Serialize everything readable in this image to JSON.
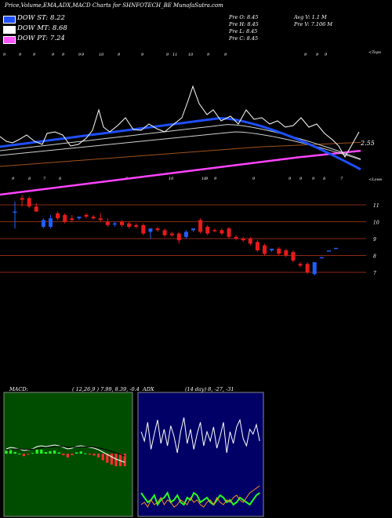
{
  "header": {
    "title": "Price,Volume,EMA,ADX,MACD Charts for SHNFOTECH_BE MunafaSutra.com"
  },
  "legend": [
    {
      "label": "DOW ST: 8.22",
      "color": "#1f4fff"
    },
    {
      "label": "DOW MT: 8.68",
      "color": "#ffffff"
    },
    {
      "label": "DOW PT: 7.24",
      "color": "#ff55ff"
    }
  ],
  "ohlc": {
    "col1": [
      "Pre  O: 8.45",
      "Pre  H: 8.45",
      "Pre  L: 8.45",
      "Pre  C: 8.45"
    ],
    "col2": [
      "Avg V: 1.1  M",
      "Pre  V: 7.106  M"
    ]
  },
  "chart_data": [
    {
      "type": "candlestick",
      "name": "price",
      "annotations": {
        "top_right": "<Tops",
        "bottom_right": "<Lows",
        "last_label": "2.55"
      },
      "levels": [
        11,
        10,
        9,
        8,
        7
      ],
      "level_labels": [
        "11",
        "10",
        "9",
        "8",
        "7"
      ],
      "top_ticks": [
        "9",
        "9",
        "9",
        "9",
        "9",
        "9",
        "9",
        "10",
        "9",
        "9",
        "9",
        "11",
        "10",
        "9",
        "9",
        "9",
        "9",
        "9"
      ],
      "bottom_ticks": [
        "9",
        "8",
        "7",
        "8",
        "9",
        "10",
        "10",
        "9",
        "9",
        "9",
        "9",
        "9",
        "9",
        "8",
        "7"
      ],
      "candles": [
        {
          "o": 10.6,
          "h": 11.2,
          "l": 9.6,
          "c": 10.6,
          "dir": "up"
        },
        {
          "o": 11.3,
          "h": 11.6,
          "l": 10.9,
          "c": 11.4,
          "dir": "down"
        },
        {
          "o": 11.4,
          "h": 11.5,
          "l": 10.8,
          "c": 10.9,
          "dir": "down"
        },
        {
          "o": 10.9,
          "h": 11.1,
          "l": 10.6,
          "c": 10.6,
          "dir": "down"
        },
        {
          "o": 10.1,
          "h": 10.2,
          "l": 9.6,
          "c": 9.7,
          "dir": "up"
        },
        {
          "o": 9.7,
          "h": 10.4,
          "l": 9.6,
          "c": 10.2,
          "dir": "up"
        },
        {
          "o": 10.5,
          "h": 10.6,
          "l": 10.1,
          "c": 10.2,
          "dir": "down"
        },
        {
          "o": 10.4,
          "h": 10.5,
          "l": 9.9,
          "c": 10.0,
          "dir": "down"
        },
        {
          "o": 10.2,
          "h": 10.4,
          "l": 10.0,
          "c": 10.1,
          "dir": "down"
        },
        {
          "o": 10.2,
          "h": 10.3,
          "l": 10.1,
          "c": 10.3,
          "dir": "up"
        },
        {
          "o": 10.4,
          "h": 10.5,
          "l": 10.2,
          "c": 10.3,
          "dir": "down"
        },
        {
          "o": 10.3,
          "h": 10.4,
          "l": 10.1,
          "c": 10.2,
          "dir": "down"
        },
        {
          "o": 10.2,
          "h": 10.5,
          "l": 10.0,
          "c": 10.1,
          "dir": "down"
        },
        {
          "o": 10.0,
          "h": 10.2,
          "l": 9.7,
          "c": 9.8,
          "dir": "down"
        },
        {
          "o": 9.9,
          "h": 10.0,
          "l": 9.7,
          "c": 9.9,
          "dir": "up"
        },
        {
          "o": 10.0,
          "h": 10.1,
          "l": 9.7,
          "c": 9.8,
          "dir": "down"
        },
        {
          "o": 9.9,
          "h": 10.0,
          "l": 9.6,
          "c": 9.7,
          "dir": "down"
        },
        {
          "o": 9.8,
          "h": 9.9,
          "l": 9.6,
          "c": 9.7,
          "dir": "down"
        },
        {
          "o": 9.8,
          "h": 9.9,
          "l": 9.2,
          "c": 9.3,
          "dir": "down"
        },
        {
          "o": 9.4,
          "h": 9.6,
          "l": 9.0,
          "c": 9.6,
          "dir": "up"
        },
        {
          "o": 9.6,
          "h": 9.7,
          "l": 9.4,
          "c": 9.5,
          "dir": "down"
        },
        {
          "o": 9.5,
          "h": 9.6,
          "l": 9.1,
          "c": 9.2,
          "dir": "down"
        },
        {
          "o": 9.3,
          "h": 9.4,
          "l": 9.1,
          "c": 9.2,
          "dir": "down"
        },
        {
          "o": 9.3,
          "h": 9.4,
          "l": 8.7,
          "c": 8.9,
          "dir": "down"
        },
        {
          "o": 9.1,
          "h": 9.5,
          "l": 9.0,
          "c": 9.4,
          "dir": "up"
        },
        {
          "o": 9.5,
          "h": 9.6,
          "l": 9.4,
          "c": 9.6,
          "dir": "up"
        },
        {
          "o": 10.1,
          "h": 10.2,
          "l": 9.3,
          "c": 9.4,
          "dir": "down"
        },
        {
          "o": 9.7,
          "h": 9.8,
          "l": 9.2,
          "c": 9.3,
          "dir": "down"
        },
        {
          "o": 9.5,
          "h": 9.6,
          "l": 9.4,
          "c": 9.5,
          "dir": "down"
        },
        {
          "o": 9.5,
          "h": 9.6,
          "l": 9.2,
          "c": 9.3,
          "dir": "down"
        },
        {
          "o": 9.6,
          "h": 9.7,
          "l": 9.0,
          "c": 9.1,
          "dir": "down"
        },
        {
          "o": 9.1,
          "h": 9.2,
          "l": 8.9,
          "c": 9.0,
          "dir": "down"
        },
        {
          "o": 9.0,
          "h": 9.1,
          "l": 8.8,
          "c": 8.9,
          "dir": "down"
        },
        {
          "o": 9.0,
          "h": 9.1,
          "l": 8.6,
          "c": 8.7,
          "dir": "down"
        },
        {
          "o": 8.8,
          "h": 8.9,
          "l": 8.2,
          "c": 8.3,
          "dir": "down"
        },
        {
          "o": 8.6,
          "h": 8.7,
          "l": 8.0,
          "c": 8.1,
          "dir": "down"
        },
        {
          "o": 8.3,
          "h": 8.4,
          "l": 8.2,
          "c": 8.4,
          "dir": "up"
        },
        {
          "o": 8.4,
          "h": 8.5,
          "l": 8.0,
          "c": 8.1,
          "dir": "down"
        },
        {
          "o": 8.3,
          "h": 8.4,
          "l": 7.9,
          "c": 8.0,
          "dir": "down"
        },
        {
          "o": 8.2,
          "h": 8.3,
          "l": 7.6,
          "c": 7.7,
          "dir": "down"
        },
        {
          "o": 7.5,
          "h": 7.6,
          "l": 7.3,
          "c": 7.4,
          "dir": "down"
        },
        {
          "o": 7.5,
          "h": 7.6,
          "l": 6.9,
          "c": 7.0,
          "dir": "down"
        },
        {
          "o": 6.9,
          "h": 7.6,
          "l": 6.8,
          "c": 7.6,
          "dir": "up"
        },
        {
          "o": 7.9,
          "h": 7.9,
          "l": 7.9,
          "c": 7.9,
          "dir": "up"
        },
        {
          "o": 8.3,
          "h": 8.3,
          "l": 8.3,
          "c": 8.3,
          "dir": "up"
        },
        {
          "o": 8.45,
          "h": 8.45,
          "l": 8.45,
          "c": 8.45,
          "dir": "up"
        }
      ]
    },
    {
      "type": "line",
      "name": "macd",
      "title": "MACD:",
      "params": "( 12,26,9 ) 7.99, 8.39, -0.4",
      "macd": [
        0.3,
        0.4,
        0.35,
        0.3,
        0.2,
        0.25,
        0.3,
        0.45,
        0.5,
        0.45,
        0.5,
        0.55,
        0.5,
        0.4,
        0.3,
        0.35,
        0.45,
        0.5,
        0.45,
        0.4,
        0.35,
        0.25,
        0.1,
        -0.05,
        -0.2,
        -0.35,
        -0.45,
        -0.55
      ],
      "signal": [
        0.2,
        0.25,
        0.3,
        0.3,
        0.28,
        0.27,
        0.28,
        0.32,
        0.37,
        0.4,
        0.42,
        0.45,
        0.46,
        0.45,
        0.42,
        0.4,
        0.41,
        0.43,
        0.44,
        0.43,
        0.41,
        0.37,
        0.31,
        0.24,
        0.15,
        0.05,
        -0.05,
        -0.15
      ],
      "ylim": [
        -1,
        1
      ]
    },
    {
      "type": "line",
      "name": "adx",
      "title": "ADX",
      "params": "(14  day) 8, -27, -31",
      "adx_white": [
        70,
        62,
        78,
        55,
        68,
        80,
        60,
        72,
        58,
        75,
        66,
        52,
        70,
        82,
        60,
        72,
        55,
        68,
        78,
        58,
        70,
        62,
        74,
        56,
        66,
        78,
        52,
        70,
        60,
        74,
        80,
        64,
        58,
        72,
        68,
        76,
        62
      ],
      "adx_green": [
        18,
        14,
        10,
        12,
        16,
        8,
        12,
        14,
        18,
        10,
        12,
        16,
        10,
        8,
        14,
        12,
        18,
        16,
        10,
        12,
        14,
        10,
        8,
        12,
        16,
        14,
        10,
        12,
        8,
        10,
        14,
        12,
        10,
        8,
        12,
        16,
        18
      ],
      "adx_orange": [
        8,
        10,
        6,
        12,
        8,
        10,
        14,
        8,
        12,
        10,
        6,
        8,
        12,
        10,
        8,
        14,
        10,
        12,
        8,
        6,
        10,
        12,
        8,
        14,
        10,
        8,
        12,
        10,
        14,
        16,
        12,
        10,
        14,
        18,
        20,
        22,
        24
      ],
      "ylim": [
        0,
        100
      ]
    }
  ]
}
